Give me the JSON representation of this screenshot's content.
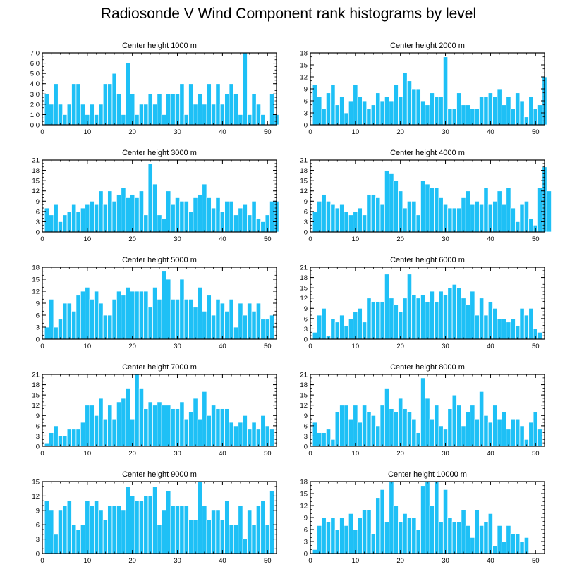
{
  "title": "Radiosonde V Wind Component rank histograms by level",
  "colors": {
    "bar": "#1ec0f6",
    "bar_edge": "#ffffff",
    "axis": "#000000"
  },
  "chart_data": [
    {
      "type": "bar",
      "title": "Center height 1000 m",
      "xlim": [
        0,
        52
      ],
      "ylim": [
        0,
        7
      ],
      "yticks": [
        "0.0",
        "1.0",
        "2.0",
        "3.0",
        "4.0",
        "5.0",
        "6.0",
        "7.0"
      ],
      "xticks": [
        0,
        10,
        20,
        30,
        40,
        50
      ],
      "values": [
        3,
        2,
        4,
        2,
        1,
        2,
        4,
        4,
        2,
        1,
        2,
        1,
        2,
        4,
        4,
        5,
        3,
        1,
        6,
        3,
        1,
        2,
        2,
        3,
        2,
        3,
        1,
        3,
        3,
        3,
        4,
        1,
        4,
        2,
        3,
        2,
        4,
        2,
        4,
        2,
        3,
        4,
        3,
        1,
        7,
        1,
        3,
        2,
        1,
        0,
        3,
        1
      ]
    },
    {
      "type": "bar",
      "title": "Center height 2000 m",
      "xlim": [
        0,
        52
      ],
      "ylim": [
        0,
        18
      ],
      "yticks": [
        "0",
        "3",
        "6",
        "9",
        "12",
        "15",
        "18"
      ],
      "xticks": [
        0,
        10,
        20,
        30,
        40,
        50
      ],
      "values": [
        10,
        7,
        4,
        8,
        10,
        5,
        7,
        3,
        6,
        10,
        7,
        6,
        4,
        5,
        8,
        6,
        7,
        6,
        10,
        7,
        13,
        11,
        9,
        9,
        6,
        5,
        8,
        7,
        7,
        17,
        4,
        4,
        8,
        5,
        5,
        4,
        4,
        7,
        7,
        8,
        7,
        9,
        5,
        7,
        4,
        8,
        6,
        2,
        7,
        4,
        5,
        12
      ]
    },
    {
      "type": "bar",
      "title": "Center height 3000 m",
      "xlim": [
        0,
        52
      ],
      "ylim": [
        0,
        21
      ],
      "yticks": [
        "0",
        "3",
        "6",
        "9",
        "12",
        "15",
        "18",
        "21"
      ],
      "xticks": [
        0,
        10,
        20,
        30,
        40,
        50
      ],
      "values": [
        7,
        5,
        8,
        3,
        5,
        6,
        8,
        6,
        7,
        8,
        9,
        8,
        12,
        8,
        12,
        9,
        11,
        13,
        10,
        11,
        10,
        12,
        5,
        20,
        14,
        5,
        4,
        12,
        8,
        10,
        9,
        9,
        6,
        10,
        11,
        14,
        10,
        7,
        10,
        6,
        9,
        9,
        5,
        7,
        8,
        5,
        9,
        4,
        3,
        5,
        9,
        9
      ]
    },
    {
      "type": "bar",
      "title": "Center height 4000 m",
      "xlim": [
        0,
        52
      ],
      "ylim": [
        0,
        21
      ],
      "yticks": [
        "0",
        "3",
        "6",
        "9",
        "12",
        "15",
        "18",
        "21"
      ],
      "xticks": [
        0,
        10,
        20,
        30,
        40,
        50
      ],
      "values": [
        6,
        9,
        11,
        9,
        8,
        7,
        8,
        6,
        5,
        6,
        7,
        5,
        11,
        11,
        10,
        8,
        18,
        17,
        15,
        12,
        7,
        9,
        9,
        5,
        15,
        14,
        13,
        13,
        10,
        8,
        7,
        7,
        7,
        10,
        12,
        8,
        9,
        8,
        13,
        8,
        9,
        12,
        8,
        13,
        7,
        3,
        8,
        9,
        4,
        2,
        13,
        19,
        12
      ]
    },
    {
      "type": "bar",
      "title": "Center height 5000 m",
      "xlim": [
        0,
        52
      ],
      "ylim": [
        0,
        18
      ],
      "yticks": [
        "0",
        "3",
        "6",
        "9",
        "12",
        "15",
        "18"
      ],
      "xticks": [
        0,
        10,
        20,
        30,
        40,
        50
      ],
      "values": [
        3,
        10,
        3,
        5,
        9,
        9,
        7,
        11,
        12,
        13,
        10,
        12,
        9,
        6,
        6,
        10,
        12,
        11,
        13,
        12,
        12,
        12,
        12,
        8,
        13,
        10,
        17,
        15,
        10,
        10,
        15,
        10,
        10,
        8,
        13,
        7,
        11,
        6,
        10,
        9,
        7,
        10,
        3,
        9,
        6,
        9,
        7,
        9,
        5,
        5,
        6
      ]
    },
    {
      "type": "bar",
      "title": "Center height 6000 m",
      "xlim": [
        0,
        52
      ],
      "ylim": [
        0,
        21
      ],
      "yticks": [
        "0",
        "3",
        "6",
        "9",
        "12",
        "15",
        "18",
        "21"
      ],
      "xticks": [
        0,
        10,
        20,
        30,
        40,
        50
      ],
      "values": [
        2,
        7,
        9,
        1,
        6,
        5,
        7,
        4,
        6,
        8,
        9,
        5,
        12,
        11,
        11,
        11,
        19,
        12,
        10,
        8,
        12,
        19,
        13,
        12,
        13,
        11,
        14,
        11,
        14,
        13,
        15,
        16,
        15,
        12,
        10,
        14,
        7,
        12,
        7,
        11,
        9,
        6,
        6,
        5,
        6,
        4,
        9,
        7,
        9,
        3,
        2
      ]
    },
    {
      "type": "bar",
      "title": "Center height 7000 m",
      "xlim": [
        0,
        52
      ],
      "ylim": [
        0,
        21
      ],
      "yticks": [
        "0",
        "3",
        "6",
        "9",
        "12",
        "15",
        "18",
        "21"
      ],
      "xticks": [
        0,
        10,
        20,
        30,
        40,
        50
      ],
      "values": [
        1,
        4,
        6,
        3,
        3,
        5,
        5,
        5,
        7,
        12,
        12,
        9,
        14,
        8,
        12,
        8,
        13,
        14,
        17,
        8,
        21,
        17,
        11,
        13,
        12,
        13,
        12,
        12,
        11,
        11,
        13,
        8,
        10,
        14,
        8,
        16,
        9,
        12,
        11,
        11,
        11,
        7,
        6,
        7,
        9,
        5,
        7,
        5,
        9,
        6,
        5
      ]
    },
    {
      "type": "bar",
      "title": "Center height 8000 m",
      "xlim": [
        0,
        52
      ],
      "ylim": [
        0,
        21
      ],
      "yticks": [
        "0",
        "3",
        "6",
        "9",
        "12",
        "15",
        "18",
        "21"
      ],
      "xticks": [
        0,
        10,
        20,
        30,
        40,
        50
      ],
      "values": [
        7,
        4,
        4,
        5,
        2,
        10,
        12,
        12,
        8,
        12,
        7,
        12,
        10,
        9,
        6,
        12,
        17,
        11,
        10,
        14,
        11,
        10,
        8,
        4,
        20,
        14,
        8,
        12,
        6,
        5,
        11,
        15,
        12,
        6,
        10,
        12,
        8,
        16,
        9,
        7,
        12,
        8,
        10,
        5,
        8,
        8,
        6,
        2,
        7,
        10,
        5
      ]
    },
    {
      "type": "bar",
      "title": "Center height 9000 m",
      "xlim": [
        0,
        52
      ],
      "ylim": [
        0,
        15
      ],
      "yticks": [
        "0",
        "3",
        "6",
        "9",
        "12",
        "15"
      ],
      "xticks": [
        0,
        10,
        20,
        30,
        40,
        50
      ],
      "values": [
        11,
        9,
        4,
        9,
        10,
        11,
        6,
        5,
        6,
        11,
        10,
        11,
        9,
        7,
        10,
        10,
        10,
        9,
        14,
        12,
        11,
        11,
        12,
        12,
        14,
        6,
        9,
        13,
        10,
        10,
        10,
        10,
        7,
        7,
        15,
        10,
        7,
        9,
        9,
        7,
        11,
        6,
        6,
        10,
        3,
        9,
        6,
        10,
        11,
        6,
        13
      ]
    },
    {
      "type": "bar",
      "title": "Center height 10000 m",
      "xlim": [
        0,
        52
      ],
      "ylim": [
        0,
        18
      ],
      "yticks": [
        "0",
        "3",
        "6",
        "9",
        "12",
        "15",
        "18"
      ],
      "xticks": [
        0,
        10,
        20,
        30,
        40,
        50
      ],
      "values": [
        1,
        7,
        9,
        8,
        9,
        6,
        9,
        7,
        10,
        6,
        9,
        11,
        11,
        5,
        14,
        16,
        8,
        18,
        12,
        8,
        10,
        9,
        9,
        6,
        17,
        18,
        12,
        18,
        8,
        16,
        9,
        8,
        8,
        11,
        7,
        4,
        11,
        7,
        8,
        10,
        2,
        7,
        3,
        7,
        5,
        5,
        3,
        4
      ]
    }
  ]
}
